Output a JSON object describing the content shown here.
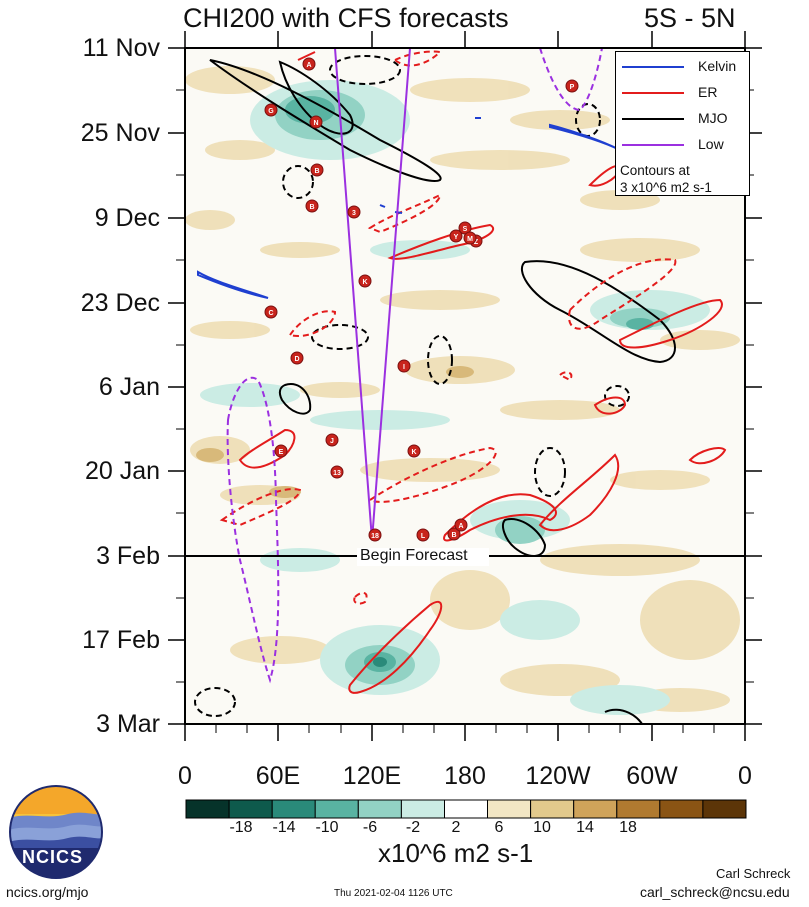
{
  "title": "CHI200 with CFS forecasts",
  "lat_band": "5S - 5N",
  "y_ticks": [
    "11 Nov",
    "25 Nov",
    "9 Dec",
    "23 Dec",
    "6 Jan",
    "20 Jan",
    "3 Feb",
    "17 Feb",
    "3 Mar"
  ],
  "x_ticks": [
    "0",
    "60E",
    "120E",
    "180",
    "120W",
    "60W",
    "0"
  ],
  "begin_forecast_label": "Begin Forecast",
  "legend": {
    "entries": [
      {
        "name": "Kelvin",
        "color": "#1f3fd0",
        "dashed": false
      },
      {
        "name": "ER",
        "color": "#e31c1c",
        "dashed": false
      },
      {
        "name": "MJO",
        "color": "#000000",
        "dashed": false
      },
      {
        "name": "Low",
        "color": "#9b30e0",
        "dashed": false
      }
    ],
    "note_line1": "Contours at",
    "note_line2": "3 x10^6 m2 s-1"
  },
  "colorbar": {
    "labels": [
      "-18",
      "-14",
      "-10",
      "-6",
      "-2",
      "2",
      "6",
      "10",
      "14",
      "18"
    ],
    "colors": [
      "#06332a",
      "#0e5a4c",
      "#2a8a7a",
      "#59b3a2",
      "#92d2c4",
      "#cbece4",
      "#ffffff",
      "#f2e6c4",
      "#e2c98c",
      "#cfa35a",
      "#b07a30",
      "#8a5414",
      "#5c3508"
    ],
    "units": "x10^6 m2 s-1"
  },
  "logo_text": "NCICS",
  "footer": {
    "url": "ncics.org/mjo",
    "timestamp": "Thu 2021-02-04 1126 UTC",
    "author": "Carl Schreck",
    "email": "carl_schreck@ncsu.edu"
  },
  "chart_data": {
    "type": "heatmap",
    "title": "CHI200 with CFS forecasts",
    "subtitle": "5S - 5N",
    "x_axis": "longitude",
    "x_range": [
      0,
      360
    ],
    "y_axis": "time",
    "y_range": [
      "11 Nov",
      "3 Mar"
    ],
    "forecast_start": "3 Feb",
    "contour_interval": 3,
    "contour_units": "x10^6 m2 s-1",
    "color_levels": [
      -18,
      -14,
      -10,
      -6,
      -2,
      2,
      6,
      10,
      14,
      18
    ],
    "legend_position": "top-right",
    "grid": false,
    "storm_markers": [
      "A",
      "G",
      "N",
      "B",
      "B",
      "3",
      "K",
      "C",
      "D",
      "I",
      "J",
      "E",
      "13",
      "K",
      "18",
      "L",
      "B",
      "A",
      "Y",
      "Z",
      "P",
      "S",
      "M"
    ]
  }
}
